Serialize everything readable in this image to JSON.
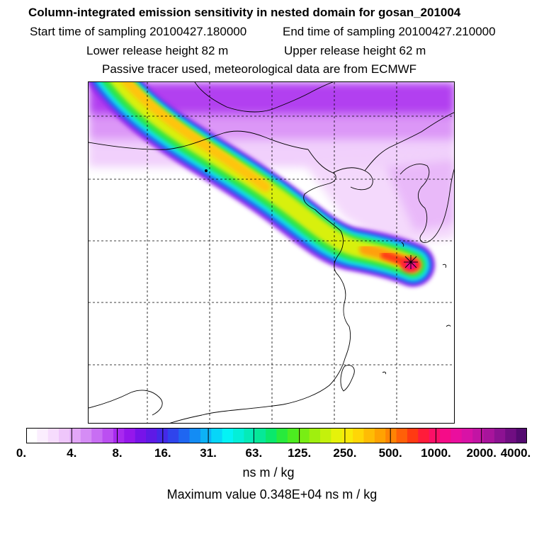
{
  "header": {
    "title": "Column-integrated emission sensitivity in nested domain for gosan_201004",
    "start_label": "Start time of sampling 20100427.180000",
    "end_label": "End time of sampling 20100427.210000",
    "lower_label": "Lower release height   82 m",
    "upper_label": "Upper release height   62 m",
    "tracer_note": "Passive tracer used, meteorological data are from ECMWF"
  },
  "legend": {
    "tick_labels": [
      "0.",
      "4.",
      "8.",
      "16.",
      "31.",
      "63.",
      "125.",
      "250.",
      "500.",
      "1000.",
      "2000.",
      "4000."
    ],
    "colors": [
      "#ffffff",
      "#fbeefe",
      "#f6dcfd",
      "#efc6fb",
      "#e2a6f8",
      "#d58cf5",
      "#c86ef3",
      "#bb4ff1",
      "#a829ef",
      "#9517ec",
      "#7713e9",
      "#5e1ae6",
      "#4429e8",
      "#2f44ec",
      "#1f66f1",
      "#138cf4",
      "#0db2f6",
      "#07d6f8",
      "#04f3f5",
      "#04efd8",
      "#05ebb8",
      "#06e898",
      "#0ae86c",
      "#28ea3c",
      "#4cec20",
      "#78ee14",
      "#a0ef0e",
      "#c4f10c",
      "#e6f20a",
      "#f8ea08",
      "#ffd606",
      "#ffbc04",
      "#ffa202",
      "#ff8404",
      "#ff6008",
      "#ff3a12",
      "#ff1c3a",
      "#fb0f66",
      "#f50c88",
      "#ea0e9e",
      "#d812a6",
      "#c214a4",
      "#a8149c",
      "#8c1292",
      "#700e82",
      "#540a70"
    ],
    "unit": "ns m / kg",
    "max_label": "Maximum value  0.348E+04 ns m / kg"
  }
}
